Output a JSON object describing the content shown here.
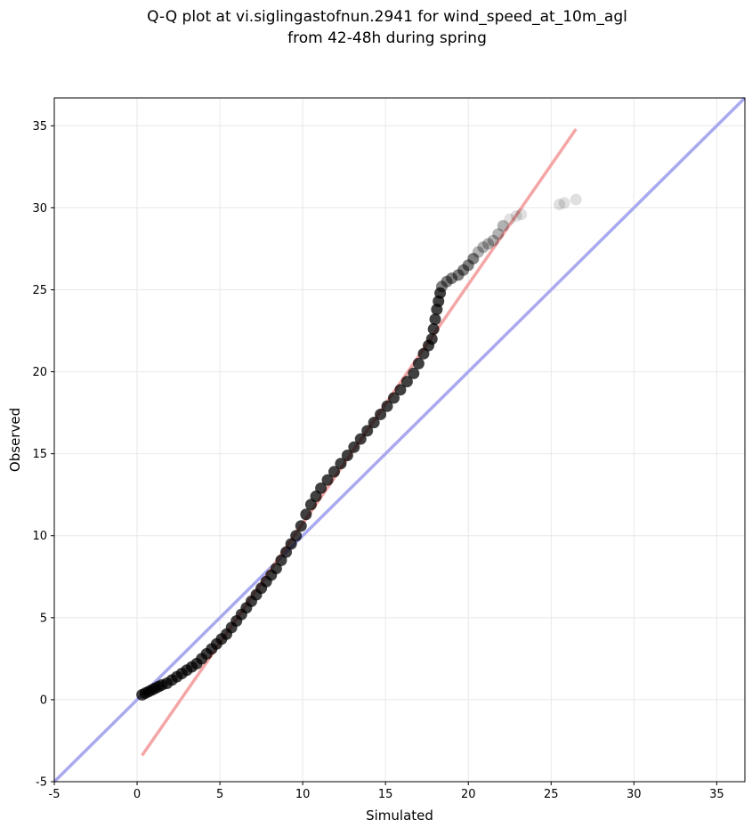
{
  "chart_data": {
    "type": "scatter",
    "title_lines": [
      "Q-Q plot at vi.siglingastofnun.2941 for wind_speed_at_10m_agl",
      "from 42-48h during spring"
    ],
    "xlabel": "Simulated",
    "ylabel": "Observed",
    "xlim": [
      -5,
      36.7
    ],
    "ylim": [
      -5,
      36.7
    ],
    "xticks": [
      -5,
      0,
      5,
      10,
      15,
      20,
      25,
      30,
      35
    ],
    "yticks": [
      -5,
      0,
      5,
      10,
      15,
      20,
      25,
      30,
      35
    ],
    "grid": true,
    "legend": "none",
    "colors": {
      "points": "#000000",
      "fit_line": "#f4a6a6",
      "identity_line": "#a9a9f0",
      "grid": "#e8e8e8"
    },
    "series": [
      {
        "kind": "quantile-points",
        "points": [
          [
            0.3,
            0.3
          ],
          [
            0.5,
            0.4
          ],
          [
            0.7,
            0.5
          ],
          [
            0.9,
            0.6
          ],
          [
            1.1,
            0.7
          ],
          [
            1.3,
            0.8
          ],
          [
            1.5,
            0.9
          ],
          [
            1.8,
            1.0
          ],
          [
            2.1,
            1.2
          ],
          [
            2.4,
            1.4
          ],
          [
            2.7,
            1.6
          ],
          [
            3.0,
            1.8
          ],
          [
            3.3,
            2.0
          ],
          [
            3.6,
            2.2
          ],
          [
            3.9,
            2.5
          ],
          [
            4.2,
            2.8
          ],
          [
            4.5,
            3.1
          ],
          [
            4.8,
            3.4
          ],
          [
            5.1,
            3.7
          ],
          [
            5.4,
            4.0
          ],
          [
            5.7,
            4.4
          ],
          [
            6.0,
            4.8
          ],
          [
            6.3,
            5.2
          ],
          [
            6.6,
            5.6
          ],
          [
            6.9,
            6.0
          ],
          [
            7.2,
            6.4
          ],
          [
            7.5,
            6.8
          ],
          [
            7.8,
            7.2
          ],
          [
            8.1,
            7.6
          ],
          [
            8.4,
            8.0
          ],
          [
            8.7,
            8.5
          ],
          [
            9.0,
            9.0
          ],
          [
            9.3,
            9.5
          ],
          [
            9.6,
            10.0
          ],
          [
            9.9,
            10.6
          ],
          [
            10.2,
            11.3
          ],
          [
            10.5,
            11.9
          ],
          [
            10.8,
            12.4
          ],
          [
            11.1,
            12.9
          ],
          [
            11.5,
            13.4
          ],
          [
            11.9,
            13.9
          ],
          [
            12.3,
            14.4
          ],
          [
            12.7,
            14.9
          ],
          [
            13.1,
            15.4
          ],
          [
            13.5,
            15.9
          ],
          [
            13.9,
            16.4
          ],
          [
            14.3,
            16.9
          ],
          [
            14.7,
            17.4
          ],
          [
            15.1,
            17.9
          ],
          [
            15.5,
            18.4
          ],
          [
            15.9,
            18.9
          ],
          [
            16.3,
            19.4
          ],
          [
            16.7,
            19.9
          ],
          [
            17.0,
            20.5
          ],
          [
            17.3,
            21.1
          ],
          [
            17.6,
            21.6
          ],
          [
            17.8,
            22.0
          ],
          [
            17.9,
            22.6
          ],
          [
            18.0,
            23.2
          ],
          [
            18.1,
            23.8
          ],
          [
            18.2,
            24.3
          ],
          [
            18.3,
            24.8
          ],
          [
            18.4,
            25.2
          ],
          [
            18.7,
            25.5
          ],
          [
            19.0,
            25.7
          ],
          [
            19.4,
            25.9
          ],
          [
            19.7,
            26.2
          ],
          [
            20.0,
            26.5
          ],
          [
            20.3,
            26.9
          ],
          [
            20.6,
            27.3
          ],
          [
            20.9,
            27.6
          ],
          [
            21.2,
            27.8
          ],
          [
            21.5,
            28.0
          ],
          [
            21.8,
            28.4
          ],
          [
            22.1,
            28.9
          ],
          [
            22.5,
            29.3
          ],
          [
            22.9,
            29.5
          ],
          [
            23.2,
            29.6
          ],
          [
            25.5,
            30.2
          ],
          [
            25.8,
            30.3
          ],
          [
            26.5,
            30.5
          ]
        ]
      },
      {
        "kind": "fit-line",
        "points": [
          [
            0.3,
            -3.4
          ],
          [
            26.5,
            34.8
          ]
        ]
      },
      {
        "kind": "identity-line",
        "points": [
          [
            -5,
            -5
          ],
          [
            36.7,
            36.7
          ]
        ]
      }
    ]
  }
}
